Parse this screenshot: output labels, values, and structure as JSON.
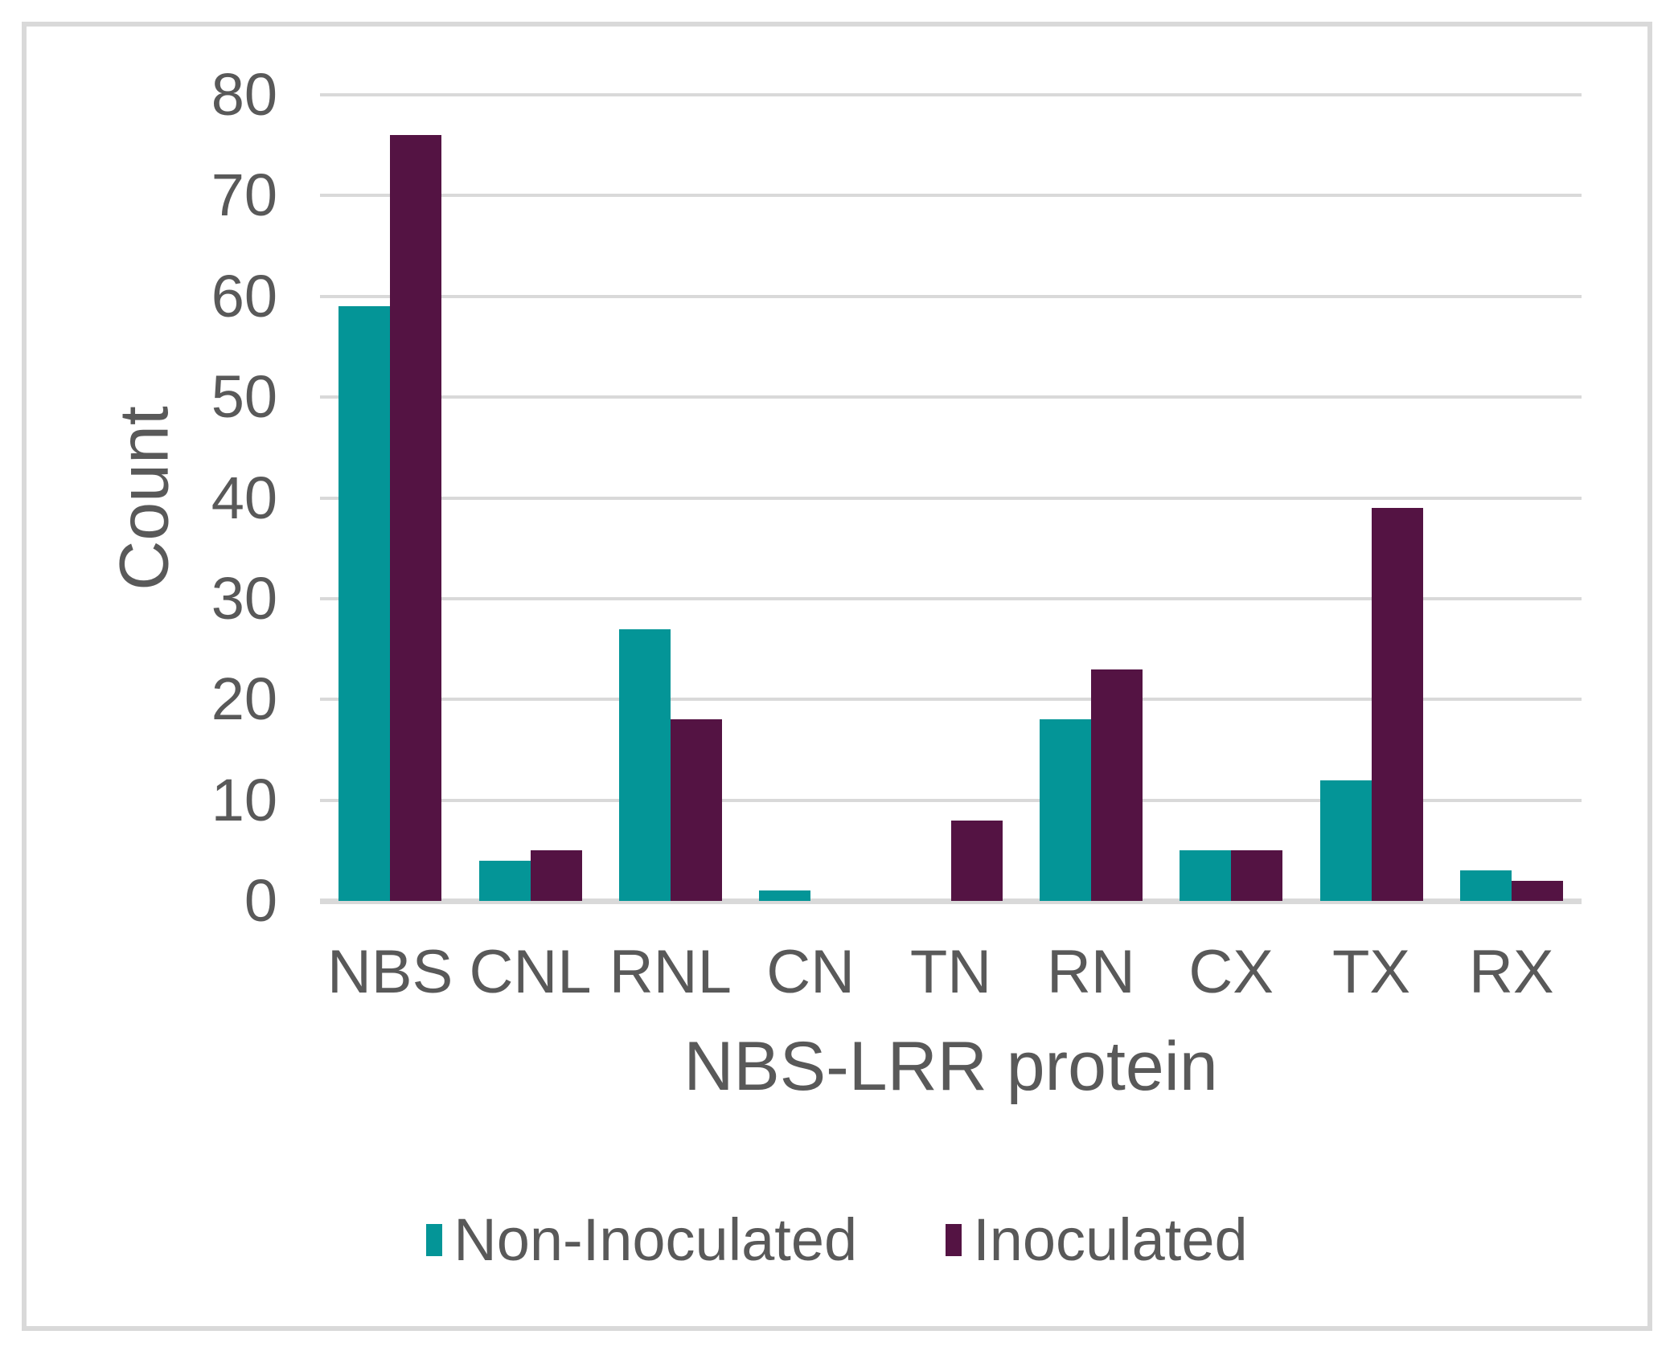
{
  "style": {
    "background_color": "#FFFFFF",
    "frame_border_color": "#D9D9D9",
    "gridline_color": "#D9D9D9",
    "axis_line_color": "#D9D9D9",
    "text_color": "#595959"
  },
  "chart_data": {
    "type": "bar",
    "title": "",
    "categories": [
      "NBS",
      "CNL",
      "RNL",
      "CN",
      "TN",
      "RN",
      "CX",
      "TX",
      "RX"
    ],
    "series": [
      {
        "name": "Non-Inoculated",
        "color": "#049597",
        "values": [
          59,
          4,
          27,
          1,
          0,
          18,
          5,
          12,
          3
        ]
      },
      {
        "name": "Inoculated",
        "color": "#541343",
        "values": [
          76,
          5,
          18,
          0,
          8,
          23,
          5,
          39,
          2
        ]
      }
    ],
    "xlabel": "NBS-LRR protein",
    "ylabel": "Count",
    "ylim": [
      0,
      80
    ],
    "ytick_step": 10,
    "yticks": [
      "0",
      "10",
      "20",
      "30",
      "40",
      "50",
      "60",
      "70",
      "80"
    ],
    "grid": "horizontal-gridlines",
    "legend_position": "bottom-center"
  }
}
